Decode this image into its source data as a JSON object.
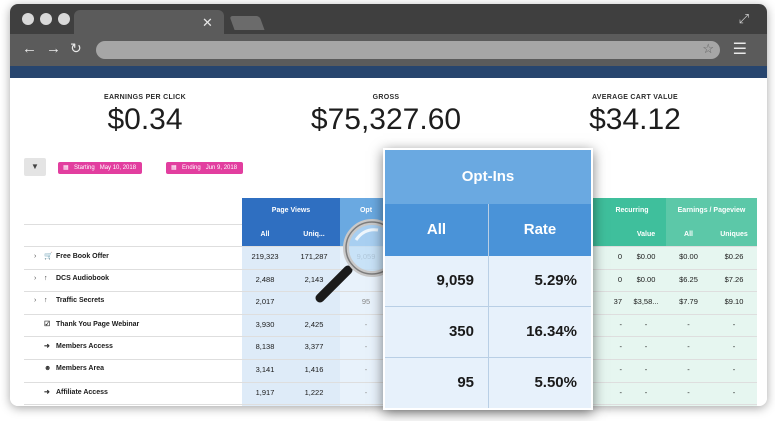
{
  "stats": {
    "epc_label": "EARNINGS PER CLICK",
    "epc_value": "$0.34",
    "gross_label": "GROSS",
    "gross_value": "$75,327.60",
    "acv_label": "AVERAGE CART VALUE",
    "acv_value": "$34.12"
  },
  "filters": {
    "start_label": "Starting",
    "start_date": "May 10, 2018",
    "end_label": "Ending",
    "end_date": "Jun 9, 2018"
  },
  "table": {
    "group_page_views": "Page Views",
    "group_optins_partial": "Opt",
    "group_recurring_partial": "Recurring",
    "group_epp": "Earnings / Pageview",
    "col_all": "All",
    "col_uniques": "Uniques",
    "col_uniques_trunc": "Uniq...",
    "col_value": "Value",
    "rows": [
      {
        "label": "Free Book Offer",
        "icon": "cart-icon",
        "pv_all": "219,323",
        "pv_uniq": "171,287",
        "opt_all": "9,059",
        "rec_a": "0",
        "rec_value": "$0.00",
        "epp_all": "$0.00",
        "epp_uniq": "$0.26"
      },
      {
        "label": "DCS Audiobook",
        "icon": "arrow-up-icon",
        "pv_all": "2,488",
        "pv_uniq": "2,143",
        "opt_all": "",
        "rec_a": "0",
        "rec_value": "$0.00",
        "epp_all": "$6.25",
        "epp_uniq": "$7.26"
      },
      {
        "label": "Traffic Secrets",
        "icon": "arrow-up-icon",
        "pv_all": "2,017",
        "pv_uniq": "",
        "opt_all": "95",
        "rec_a": "37",
        "rec_value": "$3,58...",
        "epp_all": "$7.79",
        "epp_uniq": "$9.10"
      },
      {
        "label": "Thank You Page Webinar",
        "icon": "check-square-icon",
        "pv_all": "3,930",
        "pv_uniq": "2,425",
        "opt_all": "-",
        "rec_a": "-",
        "rec_value": "-",
        "epp_all": "-",
        "epp_uniq": "-"
      },
      {
        "label": "Members Access",
        "icon": "sign-in-icon",
        "pv_all": "8,138",
        "pv_uniq": "3,377",
        "opt_all": "-",
        "rec_a": "-",
        "rec_value": "-",
        "epp_all": "-",
        "epp_uniq": "-"
      },
      {
        "label": "Members Area",
        "icon": "users-icon",
        "pv_all": "3,141",
        "pv_uniq": "1,416",
        "opt_all": "-",
        "rec_a": "-",
        "rec_value": "-",
        "epp_all": "-",
        "epp_uniq": "-"
      },
      {
        "label": "Affiliate Access",
        "icon": "sign-in-icon",
        "pv_all": "1,917",
        "pv_uniq": "1,222",
        "opt_all": "-",
        "rec_a": "-",
        "rec_value": "-",
        "epp_all": "-",
        "epp_uniq": "-"
      }
    ]
  },
  "popup": {
    "title": "Opt-Ins",
    "col_all": "All",
    "col_rate": "Rate",
    "rows": [
      {
        "all": "9,059",
        "rate": "5.29%"
      },
      {
        "all": "350",
        "rate": "16.34%"
      },
      {
        "all": "95",
        "rate": "5.50%"
      }
    ]
  },
  "colors": {
    "page_views_header": "#2f6fc1",
    "page_views_cell": "#deebf8",
    "optins_header": "#6aa9e1",
    "recurring_header": "#3fbf9c",
    "epp_header": "#5cc8a8",
    "date_pill": "#e23e9f",
    "navy_bar": "#27456e"
  }
}
